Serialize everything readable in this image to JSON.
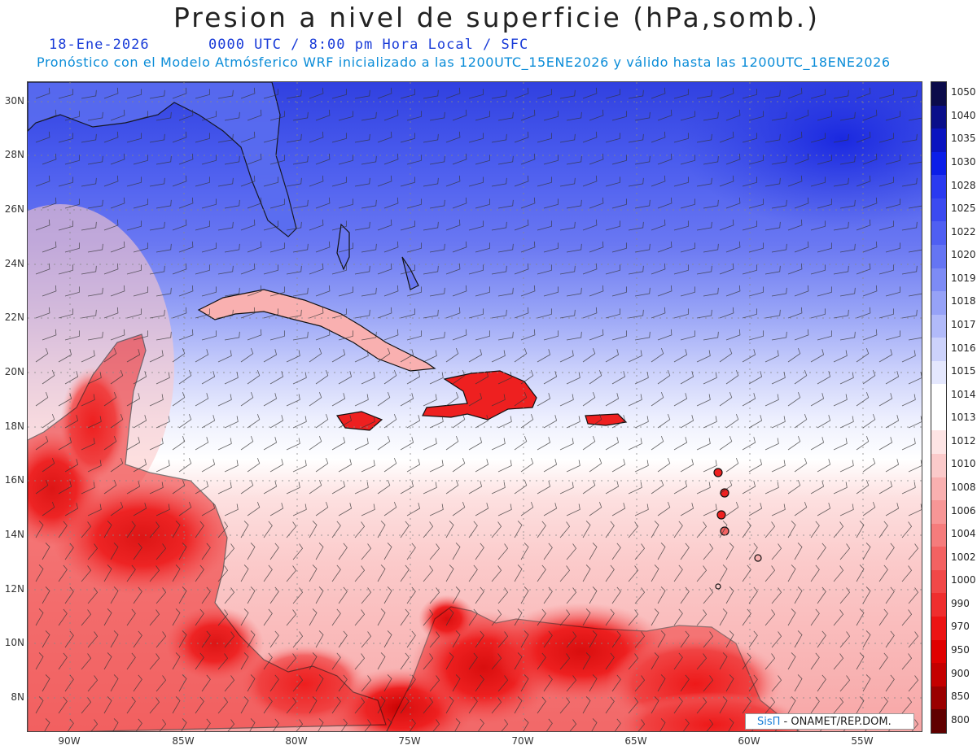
{
  "header": {
    "title": "Presion a nivel de superficie (hPa,somb.)",
    "date": "18-Ene-2026",
    "time_info": "0000 UTC / 8:00 pm Hora Local / SFC",
    "model_info": "Pronóstico con el Modelo Atmósferico WRF inicializado a las 1200UTC_15ENE2026 y válido hasta las  1200UTC_18ENE2026"
  },
  "map": {
    "lat_labels": [
      "30N",
      "28N",
      "26N",
      "24N",
      "22N",
      "20N",
      "18N",
      "16N",
      "14N",
      "12N",
      "10N",
      "8N"
    ],
    "lon_labels": [
      "90W",
      "85W",
      "80W",
      "75W",
      "70W",
      "65W",
      "60W",
      "55W"
    ],
    "colors": {
      "high": "#3a4fe0",
      "mid": "#ffffff",
      "low": "#ee1c1c"
    }
  },
  "legend": {
    "levels": [
      {
        "label": "1050",
        "color": "#0b0b4a"
      },
      {
        "label": "1040",
        "color": "#0a0f8a"
      },
      {
        "label": "1035",
        "color": "#0a14c0"
      },
      {
        "label": "1030",
        "color": "#0b1ee8"
      },
      {
        "label": "1028",
        "color": "#2a3af0"
      },
      {
        "label": "1025",
        "color": "#3b4af0"
      },
      {
        "label": "1022",
        "color": "#4f5ff2"
      },
      {
        "label": "1020",
        "color": "#6575f3"
      },
      {
        "label": "1019",
        "color": "#7d8bf5"
      },
      {
        "label": "1018",
        "color": "#96a2f7"
      },
      {
        "label": "1017",
        "color": "#b1baf9"
      },
      {
        "label": "1016",
        "color": "#ccd2fb"
      },
      {
        "label": "1015",
        "color": "#e4e7fd"
      },
      {
        "label": "1014",
        "color": "#ffffff"
      },
      {
        "label": "1013",
        "color": "#ffffff"
      },
      {
        "label": "1012",
        "color": "#fde4e4"
      },
      {
        "label": "1010",
        "color": "#fbcaca"
      },
      {
        "label": "1008",
        "color": "#f9b0b0"
      },
      {
        "label": "1006",
        "color": "#f79696"
      },
      {
        "label": "1004",
        "color": "#f57c7c"
      },
      {
        "label": "1002",
        "color": "#f36262"
      },
      {
        "label": "1000",
        "color": "#f14848"
      },
      {
        "label": "990",
        "color": "#ef2e2e"
      },
      {
        "label": "970",
        "color": "#ec1414"
      },
      {
        "label": "950",
        "color": "#e00000"
      },
      {
        "label": "900",
        "color": "#c40000"
      },
      {
        "label": "850",
        "color": "#9a0000"
      },
      {
        "label": "800",
        "color": "#600000"
      }
    ]
  },
  "credit": {
    "brand": "SisΠ",
    "text": " - ONAMET/REP.DOM."
  }
}
